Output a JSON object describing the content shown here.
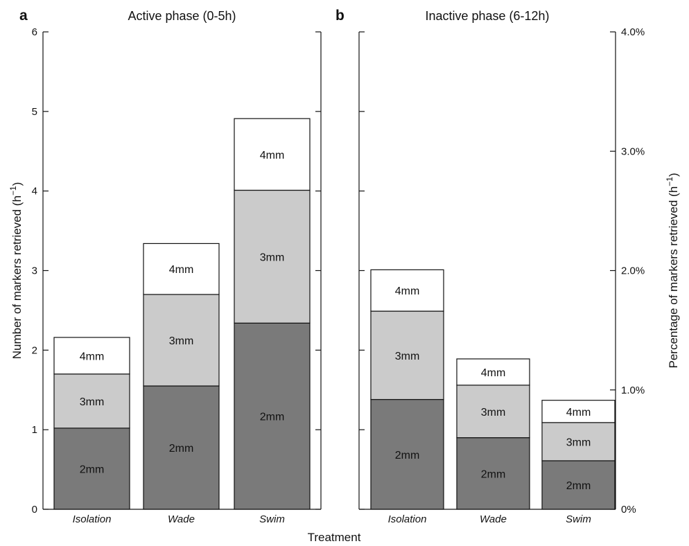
{
  "chart_data": [
    {
      "type": "bar",
      "stacked": true,
      "panel_letter": "a",
      "title": "Active phase (0-5h)",
      "categories": [
        "Isolation",
        "Wade",
        "Swim"
      ],
      "series": [
        {
          "name": "2mm",
          "values": [
            1.02,
            1.55,
            2.34
          ],
          "color": "#7a7a7a"
        },
        {
          "name": "3mm",
          "values": [
            0.68,
            1.15,
            1.67
          ],
          "color": "#cbcbcb"
        },
        {
          "name": "4mm",
          "values": [
            0.46,
            0.64,
            0.9
          ],
          "color": "#ffffff"
        }
      ],
      "ylabel": "Number of markers retrieved (h",
      "ylabel_superscript": "−1",
      "ylabel_suffix": ")",
      "ylim": [
        0,
        6
      ],
      "yticks": [
        0,
        1,
        2,
        3,
        4,
        5,
        6
      ],
      "ytick_labels": [
        "0",
        "1",
        "2",
        "3",
        "4",
        "5",
        "6"
      ],
      "grid": false
    },
    {
      "type": "bar",
      "stacked": true,
      "panel_letter": "b",
      "title": "Inactive phase (6-12h)",
      "categories": [
        "Isolation",
        "Wade",
        "Swim"
      ],
      "series": [
        {
          "name": "2mm",
          "values": [
            1.38,
            0.9,
            0.61
          ],
          "color": "#7a7a7a"
        },
        {
          "name": "3mm",
          "values": [
            1.11,
            0.66,
            0.48
          ],
          "color": "#cbcbcb"
        },
        {
          "name": "4mm",
          "values": [
            0.52,
            0.33,
            0.28
          ],
          "color": "#ffffff"
        }
      ],
      "ylim": [
        0,
        6
      ],
      "left_yticks": [
        0,
        1,
        2,
        3,
        4,
        5,
        6
      ],
      "y2label": "Percentage of markers retrieved (h",
      "y2label_superscript": "−1",
      "y2label_suffix": ")",
      "y2lim": [
        0,
        4.0
      ],
      "y2ticks": [
        0,
        1.0,
        2.0,
        3.0,
        4.0
      ],
      "y2tick_labels": [
        "0%",
        "1.0%",
        "2.0%",
        "3.0%",
        "4.0%"
      ],
      "grid": false
    }
  ],
  "xlabel": "Treatment"
}
